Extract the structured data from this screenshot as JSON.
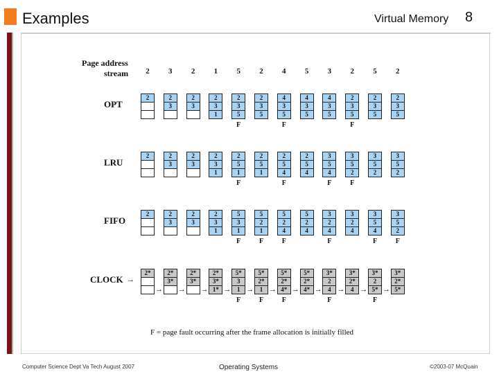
{
  "header": {
    "title": "Examples",
    "topic": "Virtual Memory",
    "page": "8"
  },
  "figure": {
    "stream_label_line1": "Page address",
    "stream_label_line2": "stream",
    "stream": [
      "2",
      "3",
      "2",
      "1",
      "5",
      "2",
      "4",
      "5",
      "3",
      "2",
      "5",
      "2"
    ],
    "rows": [
      {
        "name": "OPT",
        "frames": [
          [
            "2",
            "",
            ""
          ],
          [
            "2",
            "3",
            ""
          ],
          [
            "2",
            "3",
            ""
          ],
          [
            "2",
            "3",
            "1"
          ],
          [
            "2",
            "3",
            "5"
          ],
          [
            "2",
            "3",
            "5"
          ],
          [
            "4",
            "3",
            "5"
          ],
          [
            "4",
            "3",
            "5"
          ],
          [
            "4",
            "3",
            "5"
          ],
          [
            "2",
            "3",
            "5"
          ],
          [
            "2",
            "3",
            "5"
          ],
          [
            "2",
            "3",
            "5"
          ]
        ],
        "faults": [
          "",
          "",
          "",
          "",
          "F",
          "",
          "F",
          "",
          "",
          "F",
          "",
          ""
        ]
      },
      {
        "name": "LRU",
        "frames": [
          [
            "2",
            "",
            ""
          ],
          [
            "2",
            "3",
            ""
          ],
          [
            "2",
            "3",
            ""
          ],
          [
            "2",
            "3",
            "1"
          ],
          [
            "2",
            "5",
            "1"
          ],
          [
            "2",
            "5",
            "1"
          ],
          [
            "2",
            "5",
            "4"
          ],
          [
            "2",
            "5",
            "4"
          ],
          [
            "3",
            "5",
            "4"
          ],
          [
            "3",
            "5",
            "2"
          ],
          [
            "3",
            "5",
            "2"
          ],
          [
            "3",
            "5",
            "2"
          ]
        ],
        "faults": [
          "",
          "",
          "",
          "",
          "F",
          "",
          "F",
          "",
          "F",
          "F",
          "",
          ""
        ]
      },
      {
        "name": "FIFO",
        "frames": [
          [
            "2",
            "",
            ""
          ],
          [
            "2",
            "3",
            ""
          ],
          [
            "2",
            "3",
            ""
          ],
          [
            "2",
            "3",
            "1"
          ],
          [
            "5",
            "3",
            "1"
          ],
          [
            "5",
            "2",
            "1"
          ],
          [
            "5",
            "2",
            "4"
          ],
          [
            "5",
            "2",
            "4"
          ],
          [
            "3",
            "2",
            "4"
          ],
          [
            "3",
            "2",
            "4"
          ],
          [
            "3",
            "5",
            "4"
          ],
          [
            "3",
            "5",
            "2"
          ]
        ],
        "faults": [
          "",
          "",
          "",
          "",
          "F",
          "F",
          "F",
          "",
          "F",
          "",
          "F",
          "F"
        ]
      },
      {
        "name": "CLOCK",
        "frames": [
          [
            "2*",
            "",
            ""
          ],
          [
            "2*",
            "3*",
            ""
          ],
          [
            "2*",
            "3*",
            ""
          ],
          [
            "2*",
            "3*",
            "1*"
          ],
          [
            "5*",
            "3",
            "1"
          ],
          [
            "5*",
            "2*",
            "1"
          ],
          [
            "5*",
            "2*",
            "4*"
          ],
          [
            "5*",
            "2*",
            "4*"
          ],
          [
            "3*",
            "2",
            "4"
          ],
          [
            "3*",
            "2*",
            "4"
          ],
          [
            "3*",
            "2",
            "5*"
          ],
          [
            "3*",
            "2*",
            "5*"
          ]
        ],
        "faults": [
          "",
          "",
          "",
          "",
          "F",
          "F",
          "F",
          "",
          "F",
          "",
          "F",
          ""
        ]
      }
    ],
    "footnote": "F = page fault occurring after the frame allocation is initially filled"
  },
  "footer": {
    "left": "Computer Science Dept Va Tech August 2007",
    "center": "Operating Systems",
    "right": "©2003-07  McQuain"
  }
}
